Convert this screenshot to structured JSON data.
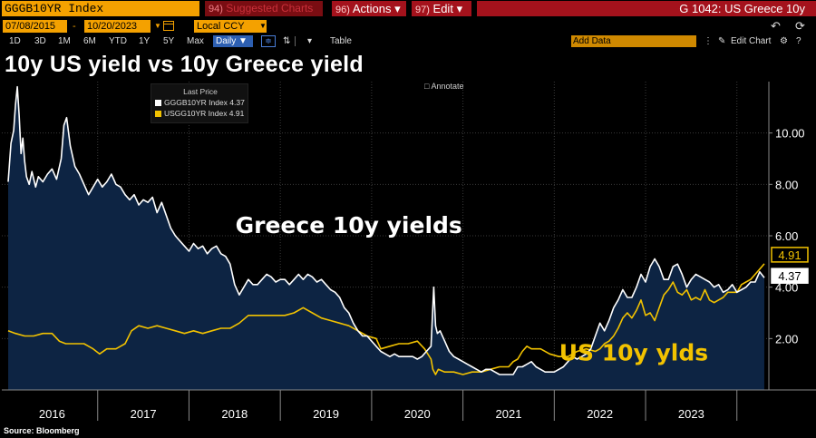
{
  "toolbar": {
    "security": "GGGB10YR Index",
    "suggested_num": "94)",
    "suggested_label": "Suggested Charts",
    "actions_num": "96)",
    "actions_label": "Actions",
    "edit_num": "97)",
    "edit_label": "Edit",
    "caret": "▾",
    "title": "G 1042: US Greece 10y"
  },
  "range": {
    "start": "07/08/2015",
    "end": "10/20/2023",
    "currency": "Local CCY",
    "dash": "-"
  },
  "periods": [
    "1D",
    "3D",
    "1M",
    "6M",
    "YTD",
    "1Y",
    "5Y",
    "Max"
  ],
  "frequency": "Daily ▼",
  "table_label": "Table",
  "add_data_placeholder": "Add Data",
  "edit_chart_label": "Edit Chart",
  "chart_title": "10y US yield vs 10y Greece yield",
  "annotate_label": "Annotate",
  "source": "Source:  Bloomberg",
  "legend": {
    "header": "Last Price",
    "items": [
      {
        "label": "GGGB10YR Index 4.37",
        "color": "#ffffff"
      },
      {
        "label": "USGG10YR Index 4.91",
        "color": "#f2c200"
      }
    ]
  },
  "colors": {
    "greece": "#ffffff",
    "us": "#f2c200",
    "area": "#0d2443",
    "grid": "#3a3a3a",
    "orange": "#f4a100"
  },
  "chart_data": {
    "type": "line",
    "title": "10y US yield vs 10y Greece yield",
    "xlabel": "",
    "ylabel": "",
    "x_range": [
      2015.52,
      2023.8
    ],
    "ylim": [
      0,
      12
    ],
    "y_ticks": [
      2,
      4,
      6,
      8,
      10
    ],
    "y_tick_labels": [
      "2.00",
      "4.00",
      "6.00",
      "8.00",
      "10.00"
    ],
    "x_tick_labels": [
      "2016",
      "2017",
      "2018",
      "2019",
      "2020",
      "2021",
      "2022",
      "2023"
    ],
    "x_tick_positions": [
      2016.0,
      2017.0,
      2018.0,
      2019.0,
      2020.0,
      2021.0,
      2022.0,
      2023.0
    ],
    "annotations": [
      {
        "text": "Greece 10y yields",
        "x": 2019.25,
        "y": 6.1,
        "color": "#ffffff"
      },
      {
        "text": "US 10y ylds",
        "x": 2022.37,
        "y": 1.15,
        "color": "#f2c200"
      }
    ],
    "last_values": [
      {
        "label": "4.91",
        "value": 4.91,
        "series": "USGG10YR Index"
      },
      {
        "label": "4.37",
        "value": 4.37,
        "series": "GGGB10YR Index"
      }
    ],
    "series": [
      {
        "name": "GGGB10YR Index",
        "color": "#ffffff",
        "x": [
          2015.52,
          2015.55,
          2015.58,
          2015.6,
          2015.62,
          2015.64,
          2015.66,
          2015.68,
          2015.7,
          2015.72,
          2015.75,
          2015.78,
          2015.82,
          2015.85,
          2015.9,
          2015.95,
          2016.0,
          2016.05,
          2016.1,
          2016.13,
          2016.16,
          2016.2,
          2016.25,
          2016.3,
          2016.35,
          2016.4,
          2016.45,
          2016.5,
          2016.55,
          2016.6,
          2016.65,
          2016.7,
          2016.75,
          2016.8,
          2016.85,
          2016.9,
          2016.95,
          2017.0,
          2017.05,
          2017.1,
          2017.15,
          2017.2,
          2017.25,
          2017.3,
          2017.35,
          2017.4,
          2017.45,
          2017.5,
          2017.55,
          2017.6,
          2017.65,
          2017.7,
          2017.75,
          2017.8,
          2017.85,
          2017.9,
          2017.95,
          2018.0,
          2018.05,
          2018.1,
          2018.15,
          2018.2,
          2018.25,
          2018.3,
          2018.35,
          2018.4,
          2018.45,
          2018.5,
          2018.55,
          2018.6,
          2018.65,
          2018.7,
          2018.75,
          2018.8,
          2018.85,
          2018.9,
          2018.95,
          2019.0,
          2019.05,
          2019.1,
          2019.15,
          2019.2,
          2019.25,
          2019.3,
          2019.35,
          2019.4,
          2019.45,
          2019.5,
          2019.55,
          2019.6,
          2019.65,
          2019.7,
          2019.75,
          2019.8,
          2019.85,
          2019.9,
          2019.95,
          2020.0,
          2020.05,
          2020.1,
          2020.15,
          2020.18,
          2020.2,
          2020.22,
          2020.25,
          2020.3,
          2020.35,
          2020.4,
          2020.45,
          2020.5,
          2020.55,
          2020.6,
          2020.65,
          2020.7,
          2020.75,
          2020.8,
          2020.85,
          2020.9,
          2020.95,
          2021.0,
          2021.05,
          2021.1,
          2021.15,
          2021.2,
          2021.25,
          2021.3,
          2021.35,
          2021.4,
          2021.45,
          2021.5,
          2021.55,
          2021.6,
          2021.65,
          2021.7,
          2021.75,
          2021.8,
          2021.85,
          2021.9,
          2021.95,
          2022.0,
          2022.05,
          2022.1,
          2022.15,
          2022.2,
          2022.25,
          2022.3,
          2022.35,
          2022.4,
          2022.45,
          2022.5,
          2022.55,
          2022.6,
          2022.65,
          2022.7,
          2022.75,
          2022.8,
          2022.85,
          2022.9,
          2022.95,
          2023.0,
          2023.05,
          2023.1,
          2023.15,
          2023.2,
          2023.25,
          2023.3,
          2023.35,
          2023.4,
          2023.45,
          2023.5,
          2023.55,
          2023.6,
          2023.65,
          2023.7,
          2023.75,
          2023.8
        ],
        "values": [
          8.1,
          9.6,
          10.1,
          11.1,
          11.8,
          10.7,
          9.2,
          9.8,
          8.9,
          8.3,
          8.0,
          8.5,
          7.9,
          8.3,
          8.1,
          8.4,
          8.6,
          8.2,
          9.0,
          10.3,
          10.6,
          9.5,
          8.7,
          8.4,
          8.0,
          7.6,
          7.9,
          8.2,
          7.9,
          8.1,
          8.4,
          8.0,
          7.9,
          7.6,
          7.4,
          7.6,
          7.2,
          7.4,
          7.3,
          7.5,
          6.9,
          7.3,
          6.8,
          6.3,
          6.0,
          5.8,
          5.6,
          5.4,
          5.7,
          5.5,
          5.6,
          5.3,
          5.5,
          5.6,
          5.3,
          5.2,
          4.9,
          4.1,
          3.7,
          4.0,
          4.3,
          4.1,
          4.1,
          4.3,
          4.5,
          4.4,
          4.2,
          4.3,
          4.3,
          4.1,
          4.3,
          4.5,
          4.3,
          4.5,
          4.4,
          4.2,
          4.3,
          4.1,
          3.9,
          3.8,
          3.6,
          3.2,
          3.0,
          2.6,
          2.3,
          2.1,
          2.1,
          1.9,
          1.7,
          1.5,
          1.4,
          1.3,
          1.4,
          1.3,
          1.3,
          1.3,
          1.3,
          1.2,
          1.3,
          1.5,
          1.7,
          4.0,
          2.5,
          2.2,
          2.3,
          1.9,
          1.5,
          1.3,
          1.2,
          1.1,
          1.0,
          0.9,
          0.8,
          0.7,
          0.8,
          0.8,
          0.7,
          0.6,
          0.6,
          0.6,
          0.6,
          0.9,
          0.9,
          1.0,
          1.1,
          0.9,
          0.8,
          0.7,
          0.7,
          0.7,
          0.8,
          0.9,
          1.1,
          1.3,
          1.2,
          1.3,
          1.4,
          1.6,
          2.1,
          2.6,
          2.3,
          2.7,
          3.2,
          3.5,
          3.9,
          3.6,
          3.6,
          4.0,
          4.5,
          4.2,
          4.8,
          5.1,
          4.8,
          4.3,
          4.3,
          4.8,
          4.9,
          4.5,
          4.0,
          4.3,
          4.5,
          4.4,
          4.3,
          4.2,
          4.0,
          4.1,
          3.8,
          3.9,
          4.1,
          3.8,
          3.9,
          4.0,
          4.2,
          4.2,
          4.6,
          4.37
        ]
      },
      {
        "name": "USGG10YR Index",
        "color": "#f2c200",
        "x": [
          2015.52,
          2015.6,
          2015.7,
          2015.8,
          2015.9,
          2016.0,
          2016.08,
          2016.15,
          2016.25,
          2016.35,
          2016.45,
          2016.52,
          2016.6,
          2016.7,
          2016.8,
          2016.87,
          2016.95,
          2017.05,
          2017.15,
          2017.25,
          2017.35,
          2017.45,
          2017.55,
          2017.65,
          2017.75,
          2017.85,
          2017.95,
          2018.05,
          2018.15,
          2018.25,
          2018.35,
          2018.45,
          2018.55,
          2018.65,
          2018.75,
          2018.8,
          2018.85,
          2018.95,
          2019.05,
          2019.15,
          2019.25,
          2019.35,
          2019.45,
          2019.55,
          2019.6,
          2019.7,
          2019.8,
          2019.9,
          2020.0,
          2020.08,
          2020.15,
          2020.17,
          2020.2,
          2020.23,
          2020.3,
          2020.4,
          2020.5,
          2020.6,
          2020.7,
          2020.8,
          2020.9,
          2021.0,
          2021.05,
          2021.1,
          2021.15,
          2021.2,
          2021.25,
          2021.35,
          2021.45,
          2021.55,
          2021.65,
          2021.75,
          2021.85,
          2021.95,
          2022.0,
          2022.05,
          2022.1,
          2022.15,
          2022.2,
          2022.25,
          2022.3,
          2022.35,
          2022.4,
          2022.45,
          2022.5,
          2022.55,
          2022.6,
          2022.65,
          2022.7,
          2022.75,
          2022.8,
          2022.85,
          2022.9,
          2022.95,
          2023.0,
          2023.05,
          2023.1,
          2023.15,
          2023.2,
          2023.25,
          2023.3,
          2023.35,
          2023.4,
          2023.45,
          2023.5,
          2023.55,
          2023.6,
          2023.65,
          2023.7,
          2023.75,
          2023.8
        ],
        "values": [
          2.3,
          2.2,
          2.1,
          2.1,
          2.2,
          2.2,
          1.9,
          1.8,
          1.8,
          1.8,
          1.6,
          1.4,
          1.6,
          1.6,
          1.8,
          2.3,
          2.5,
          2.4,
          2.5,
          2.4,
          2.3,
          2.2,
          2.3,
          2.2,
          2.3,
          2.4,
          2.4,
          2.6,
          2.9,
          2.9,
          2.9,
          2.9,
          2.9,
          3.0,
          3.2,
          3.1,
          3.0,
          2.8,
          2.7,
          2.6,
          2.5,
          2.3,
          2.1,
          2.0,
          1.6,
          1.7,
          1.8,
          1.8,
          1.9,
          1.6,
          1.2,
          0.8,
          0.6,
          0.8,
          0.7,
          0.7,
          0.6,
          0.7,
          0.7,
          0.8,
          0.9,
          0.9,
          1.1,
          1.2,
          1.5,
          1.7,
          1.6,
          1.6,
          1.4,
          1.3,
          1.3,
          1.5,
          1.6,
          1.5,
          1.6,
          1.8,
          1.9,
          2.1,
          2.4,
          2.8,
          3.0,
          2.8,
          3.1,
          3.5,
          2.9,
          3.0,
          2.7,
          3.2,
          3.7,
          3.9,
          4.2,
          3.8,
          3.7,
          3.9,
          3.5,
          3.6,
          3.5,
          3.9,
          3.5,
          3.4,
          3.5,
          3.6,
          3.8,
          3.8,
          3.8,
          4.1,
          4.2,
          4.3,
          4.5,
          4.7,
          4.91
        ]
      }
    ]
  }
}
